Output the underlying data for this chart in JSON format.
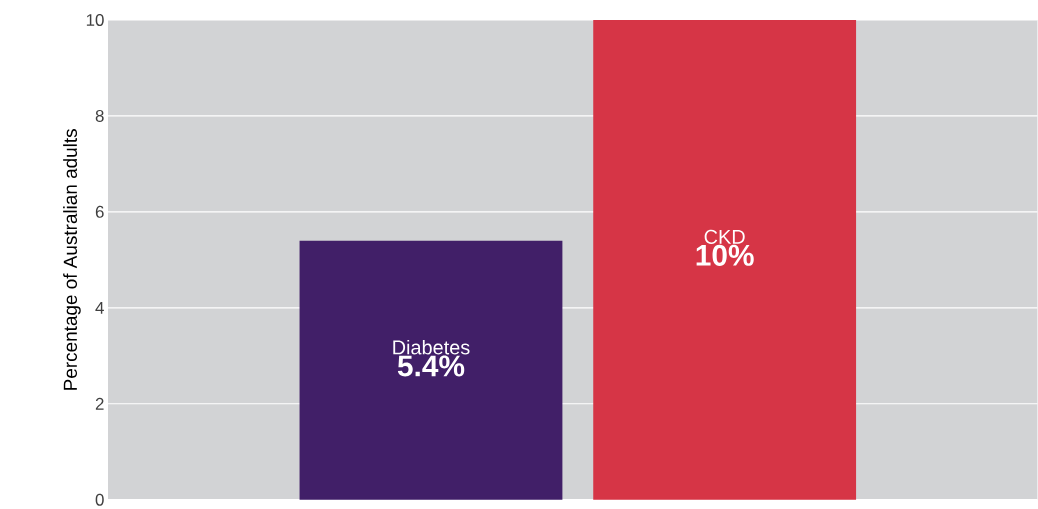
{
  "chart_data": {
    "type": "bar",
    "ylabel": "Percentage of Australian adults",
    "categories": [
      "Diabetes",
      "CKD"
    ],
    "values": [
      5.4,
      10
    ],
    "colors": [
      "#411f68",
      "#d63546"
    ],
    "value_labels": [
      "5.4%",
      "10%"
    ],
    "ylim": [
      0,
      10
    ],
    "yticks": [
      0,
      2,
      4,
      6,
      8,
      10
    ],
    "grid": "y",
    "tick_labels": "y"
  }
}
